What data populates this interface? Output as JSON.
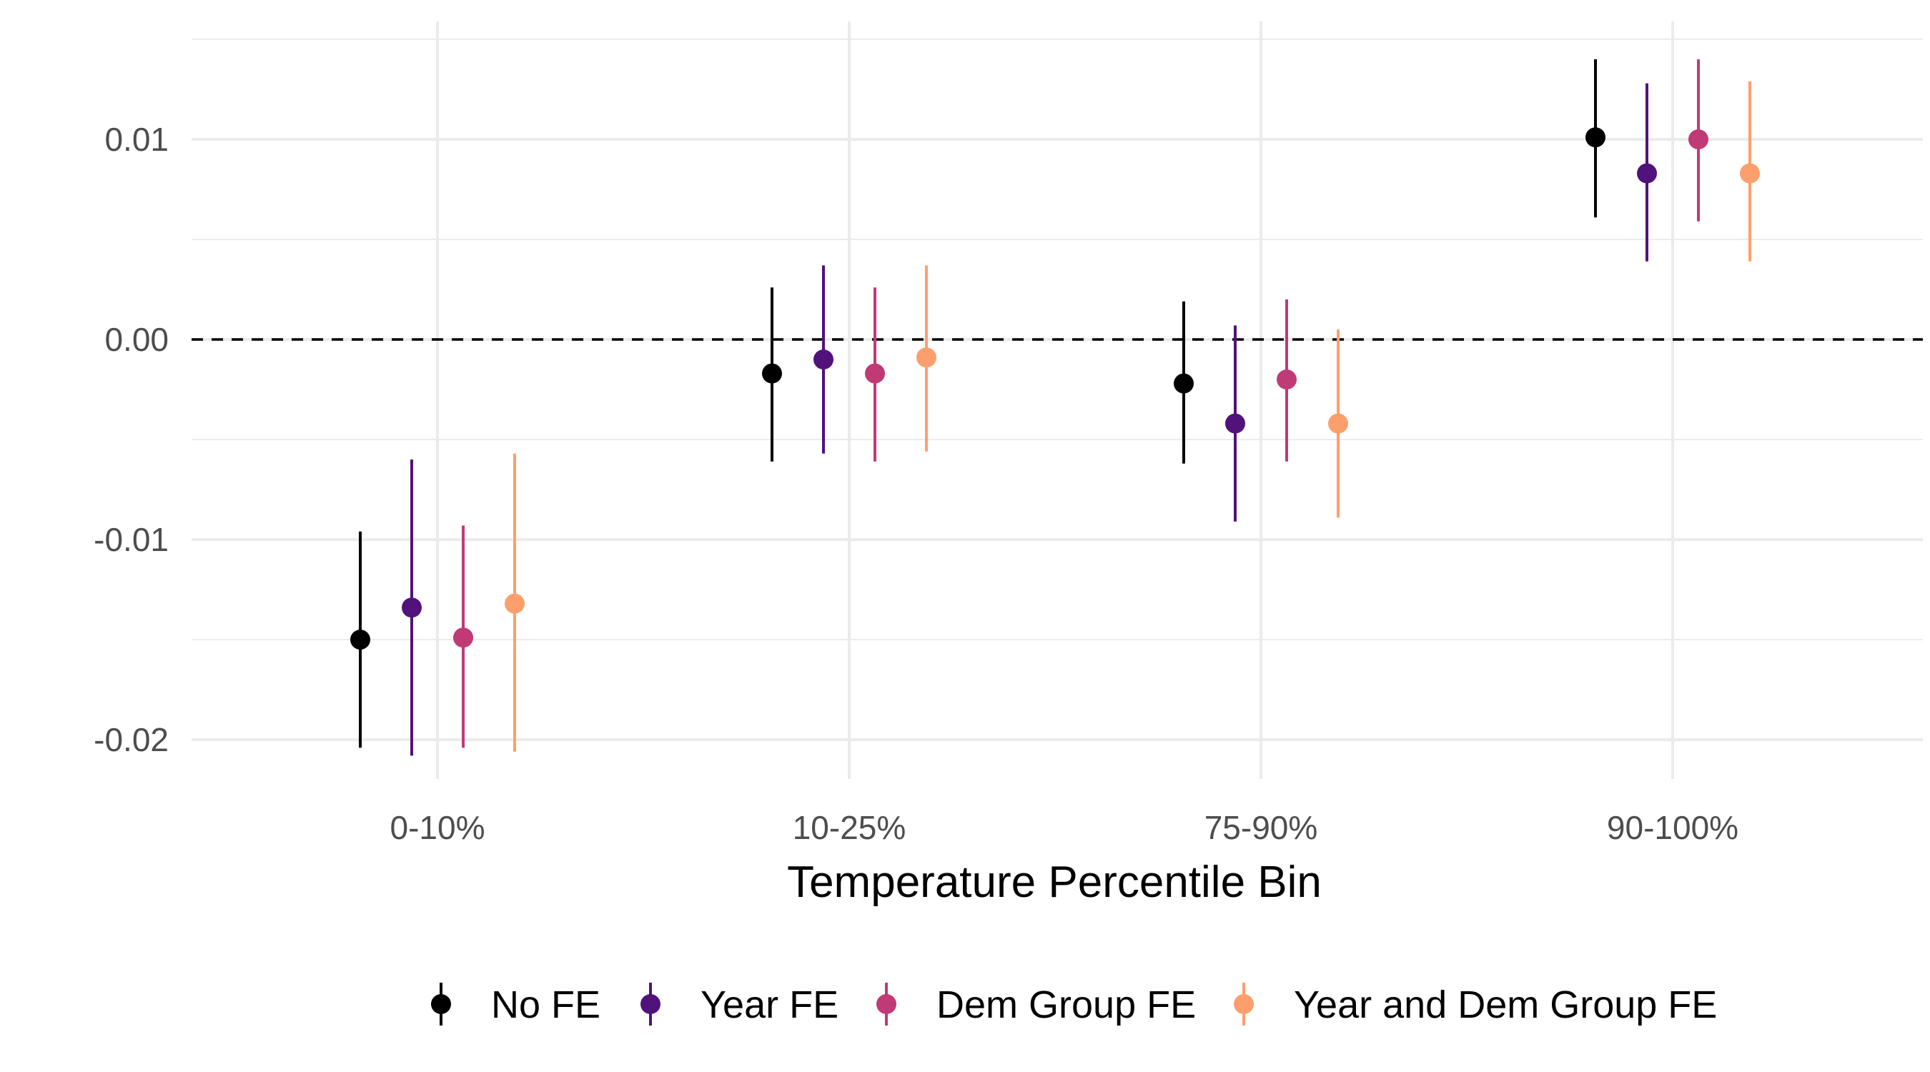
{
  "chart_data": {
    "type": "scatter",
    "subtype": "pointrange",
    "title": "",
    "xlabel": "Temperature Percentile Bin",
    "ylabel": "",
    "categories": [
      "0-10%",
      "10-25%",
      "75-90%",
      "90-100%"
    ],
    "y_ticks": [
      -0.02,
      -0.01,
      0.0,
      0.01
    ],
    "y_tick_labels": [
      "-0.02",
      "-0.01",
      "0.00",
      "0.01"
    ],
    "ylim": [
      -0.0225,
      0.015
    ],
    "reference_line": {
      "y": 0,
      "style": "dashed",
      "color": "#000000"
    },
    "grid": true,
    "legend_position": "bottom",
    "series": [
      {
        "name": "No FE",
        "color": "#000000",
        "estimates": [
          -0.015,
          -0.0017,
          -0.0022,
          0.0101
        ],
        "lower": [
          -0.0204,
          -0.0061,
          -0.0062,
          0.0061
        ],
        "upper": [
          -0.0096,
          0.0026,
          0.0019,
          0.014
        ]
      },
      {
        "name": "Year FE",
        "color": "#51127C",
        "estimates": [
          -0.0134,
          -0.001,
          -0.0042,
          0.0083
        ],
        "lower": [
          -0.0208,
          -0.0057,
          -0.0091,
          0.0039
        ],
        "upper": [
          -0.006,
          0.0037,
          0.0007,
          0.0128
        ]
      },
      {
        "name": "Dem Group FE",
        "color": "#C03A76",
        "estimates": [
          -0.0149,
          -0.0017,
          -0.002,
          0.01
        ],
        "lower": [
          -0.0204,
          -0.0061,
          -0.0061,
          0.0059
        ],
        "upper": [
          -0.0093,
          0.0026,
          0.002,
          0.014
        ]
      },
      {
        "name": "Year and Dem Group FE",
        "color": "#FD9F6C",
        "estimates": [
          -0.0132,
          -0.0009,
          -0.0042,
          0.0083
        ],
        "lower": [
          -0.0206,
          -0.0056,
          -0.0089,
          0.0039
        ],
        "upper": [
          -0.0057,
          0.0037,
          0.0005,
          0.0129
        ]
      }
    ]
  }
}
